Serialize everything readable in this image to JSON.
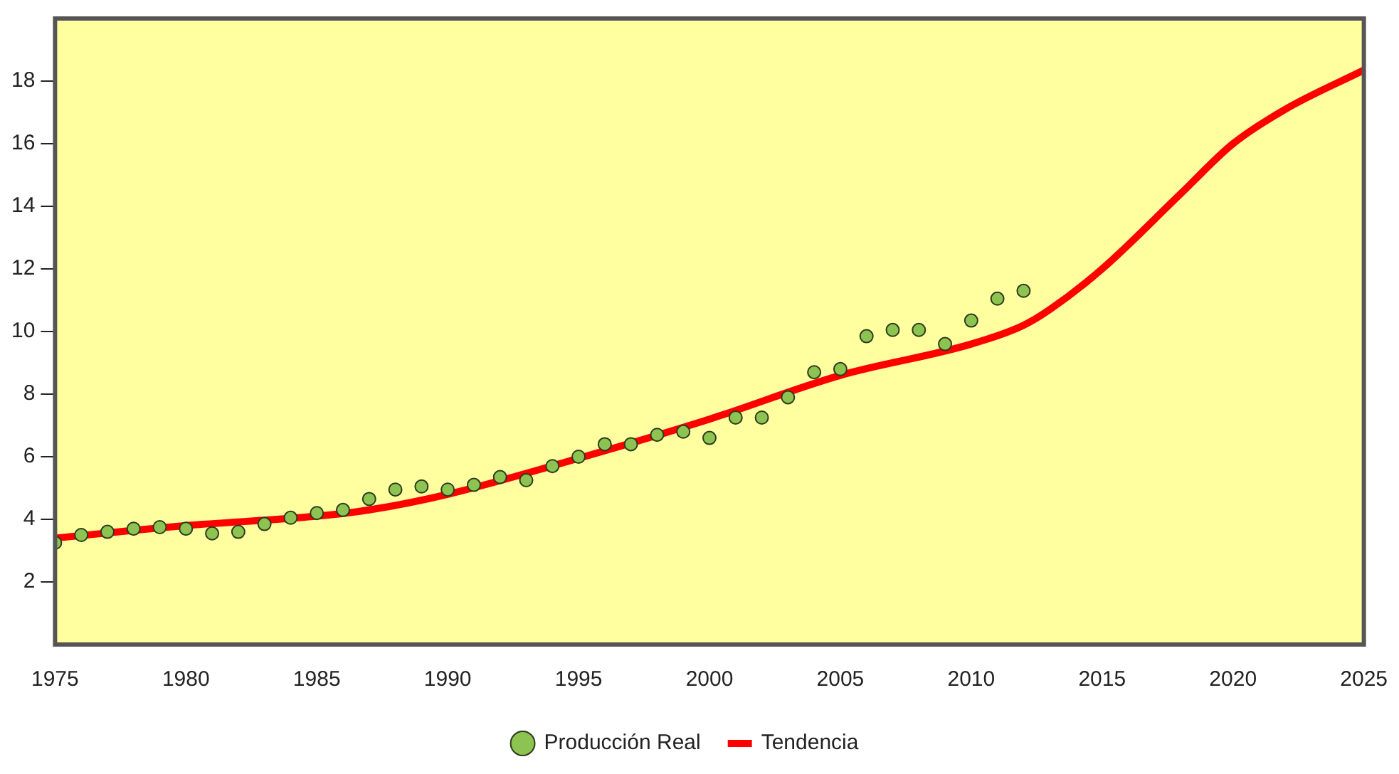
{
  "chart_data": {
    "type": "line",
    "xlim": [
      1975,
      2025
    ],
    "xticks": [
      1975,
      1980,
      1985,
      1990,
      1995,
      2000,
      2005,
      2010,
      2015,
      2020,
      2025
    ],
    "ylim": [
      0,
      20
    ],
    "yticks": [
      2,
      4,
      6,
      8,
      10,
      12,
      14,
      16,
      18
    ],
    "grid": false,
    "legend": "bottom",
    "series": [
      {
        "name": "Producción Real",
        "type": "scatter",
        "marker": "circle",
        "color": "#8dc451",
        "x": [
          1975,
          1976,
          1977,
          1978,
          1979,
          1980,
          1981,
          1982,
          1983,
          1984,
          1985,
          1986,
          1987,
          1988,
          1989,
          1990,
          1991,
          1992,
          1993,
          1994,
          1995,
          1996,
          1997,
          1998,
          1999,
          2000,
          2001,
          2002,
          2003,
          2004,
          2005,
          2006,
          2007,
          2008,
          2009,
          2010,
          2011,
          2012
        ],
        "values": [
          3.25,
          3.5,
          3.6,
          3.7,
          3.75,
          3.7,
          3.55,
          3.6,
          3.85,
          4.05,
          4.2,
          4.3,
          4.65,
          4.95,
          5.05,
          4.95,
          5.1,
          5.35,
          5.25,
          5.7,
          6.0,
          6.4,
          6.4,
          6.7,
          6.8,
          6.6,
          7.25,
          7.25,
          7.9,
          8.7,
          8.8,
          9.85,
          10.05,
          10.05,
          9.6,
          10.35,
          11.05,
          11.3
        ]
      },
      {
        "name": "Tendencia",
        "color": "#ff0000",
        "x": [
          1975,
          1980,
          1985,
          1987,
          1990,
          1995,
          2000,
          2005,
          2010,
          2012,
          2013,
          2015,
          2018,
          2020,
          2022,
          2025
        ],
        "values": [
          3.4,
          3.8,
          4.1,
          4.3,
          4.8,
          5.95,
          7.2,
          8.6,
          9.6,
          10.2,
          10.7,
          12.0,
          14.4,
          16.0,
          17.1,
          18.35
        ]
      }
    ]
  }
}
